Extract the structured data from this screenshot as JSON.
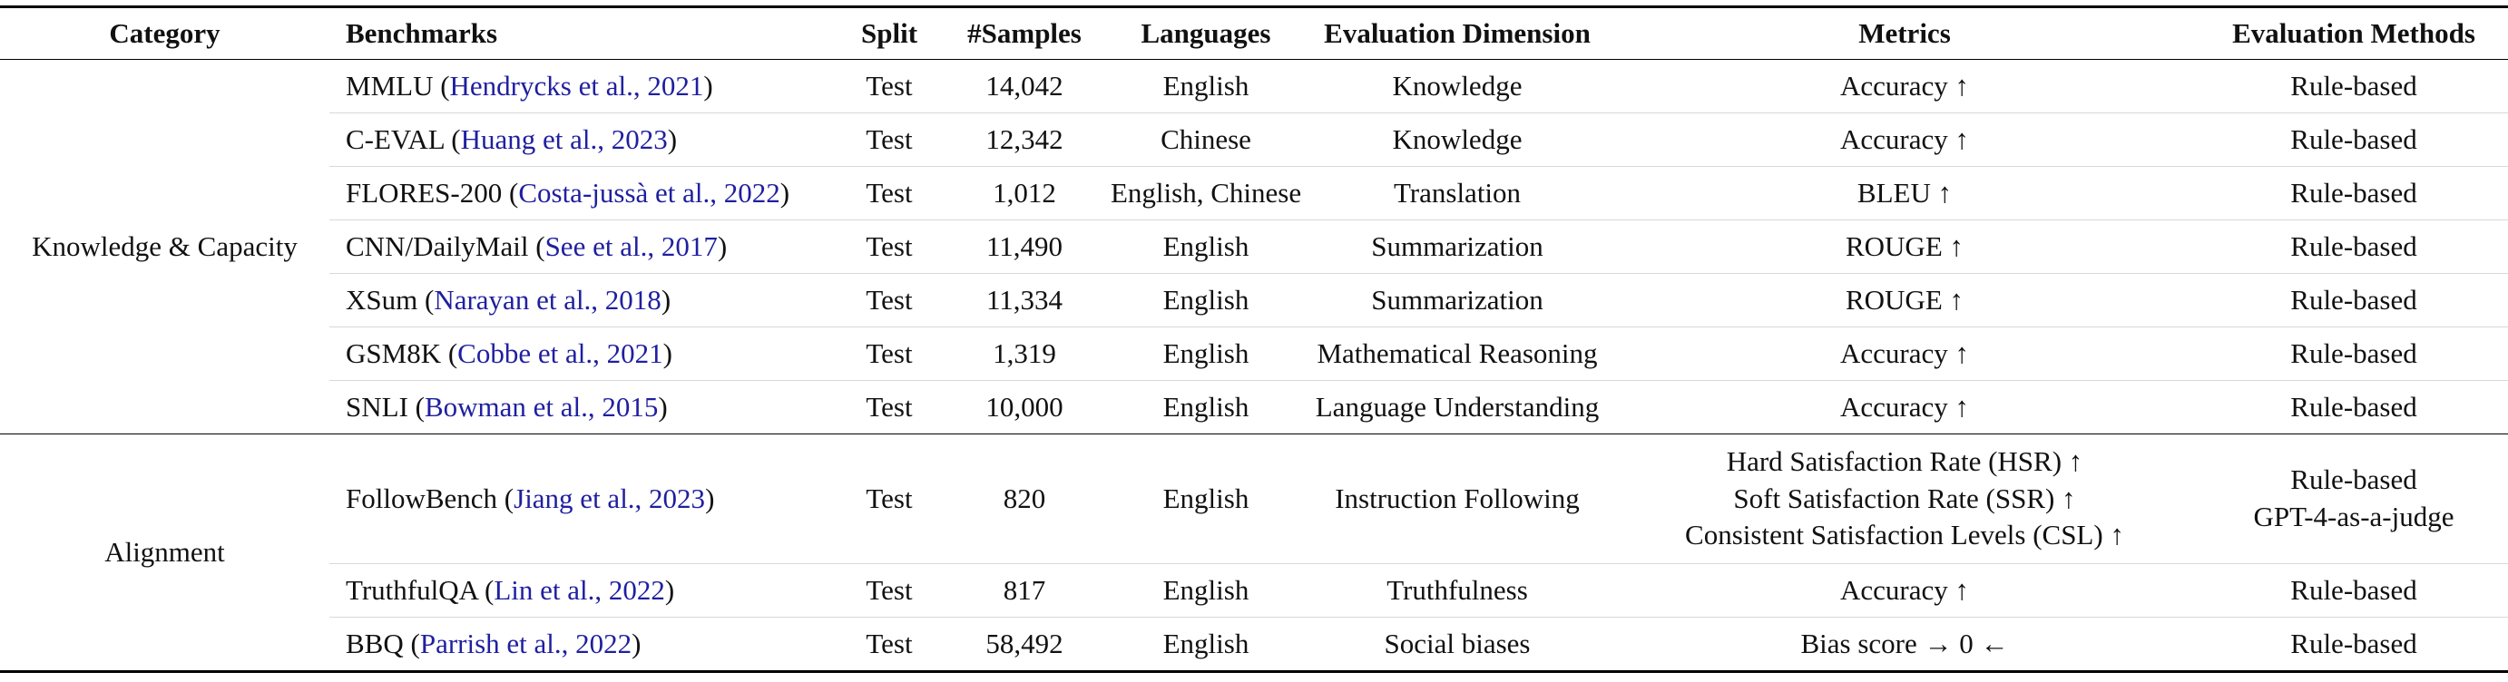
{
  "headers": {
    "category": "Category",
    "benchmarks": "Benchmarks",
    "split": "Split",
    "samples": "#Samples",
    "languages": "Languages",
    "dimension": "Evaluation Dimension",
    "metrics": "Metrics",
    "methods": "Evaluation Methods"
  },
  "groups": [
    {
      "name": "Knowledge & Capacity"
    },
    {
      "name": "Alignment"
    }
  ],
  "rows": [
    {
      "bench": "MMLU (",
      "cite": "Hendrycks et al., 2021",
      "close": ")",
      "split": "Test",
      "samples": "14,042",
      "lang": "English",
      "dim": "Knowledge",
      "metric": [
        "Accuracy ↑"
      ],
      "method": [
        "Rule-based"
      ]
    },
    {
      "bench": "C-EVAL (",
      "cite": "Huang et al., 2023",
      "close": ")",
      "split": "Test",
      "samples": "12,342",
      "lang": "Chinese",
      "dim": "Knowledge",
      "metric": [
        "Accuracy ↑"
      ],
      "method": [
        "Rule-based"
      ]
    },
    {
      "bench": "FLORES-200 (",
      "cite": "Costa-jussà et al., 2022",
      "close": ")",
      "split": "Test",
      "samples": "1,012",
      "lang": "English, Chinese",
      "dim": "Translation",
      "metric": [
        "BLEU ↑"
      ],
      "method": [
        "Rule-based"
      ]
    },
    {
      "bench": "CNN/DailyMail (",
      "cite": "See et al., 2017",
      "close": ")",
      "split": "Test",
      "samples": "11,490",
      "lang": "English",
      "dim": "Summarization",
      "metric": [
        "ROUGE ↑"
      ],
      "method": [
        "Rule-based"
      ]
    },
    {
      "bench": "XSum (",
      "cite": "Narayan et al., 2018",
      "close": ")",
      "split": "Test",
      "samples": "11,334",
      "lang": "English",
      "dim": "Summarization",
      "metric": [
        "ROUGE ↑"
      ],
      "method": [
        "Rule-based"
      ]
    },
    {
      "bench": "GSM8K (",
      "cite": "Cobbe et al., 2021",
      "close": ")",
      "split": "Test",
      "samples": "1,319",
      "lang": "English",
      "dim": "Mathematical Reasoning",
      "metric": [
        "Accuracy ↑"
      ],
      "method": [
        "Rule-based"
      ]
    },
    {
      "bench": "SNLI (",
      "cite": "Bowman et al., 2015",
      "close": ")",
      "split": "Test",
      "samples": "10,000",
      "lang": "English",
      "dim": "Language Understanding",
      "metric": [
        "Accuracy ↑"
      ],
      "method": [
        "Rule-based"
      ]
    },
    {
      "bench": "FollowBench (",
      "cite": "Jiang et al., 2023",
      "close": ")",
      "split": "Test",
      "samples": "820",
      "lang": "English",
      "dim": "Instruction Following",
      "metric": [
        "Hard Satisfaction Rate (HSR) ↑",
        "Soft Satisfaction Rate (SSR) ↑",
        "Consistent Satisfaction Levels (CSL) ↑"
      ],
      "method": [
        "Rule-based",
        "GPT-4-as-a-judge"
      ]
    },
    {
      "bench": "TruthfulQA (",
      "cite": "Lin et al., 2022",
      "close": ")",
      "split": "Test",
      "samples": "817",
      "lang": "English",
      "dim": "Truthfulness",
      "metric": [
        "Accuracy ↑"
      ],
      "method": [
        "Rule-based"
      ]
    },
    {
      "bench": "BBQ (",
      "cite": "Parrish et al., 2022",
      "close": ")",
      "split": "Test",
      "samples": "58,492",
      "lang": "English",
      "dim": "Social biases",
      "metric": [
        "Bias score → 0 ←"
      ],
      "method": [
        "Rule-based"
      ]
    }
  ],
  "colors": {
    "citation": "#1f1fa0",
    "rule": "#000000",
    "light_rule": "#d8d8d8"
  }
}
